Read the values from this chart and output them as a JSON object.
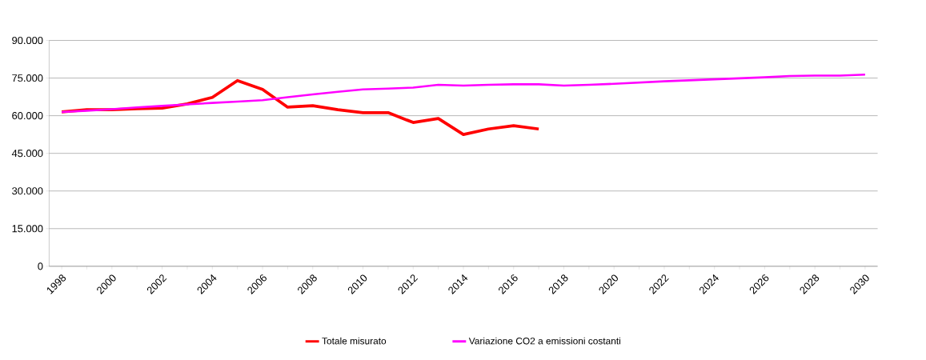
{
  "chart_data": {
    "type": "line",
    "x": [
      1998,
      1999,
      2000,
      2001,
      2002,
      2003,
      2004,
      2005,
      2006,
      2007,
      2008,
      2009,
      2010,
      2011,
      2012,
      2013,
      2014,
      2015,
      2016,
      2017,
      2018,
      2019,
      2020,
      2021,
      2022,
      2023,
      2024,
      2025,
      2026,
      2027,
      2028,
      2029,
      2030
    ],
    "series": [
      {
        "name": "Totale misurato",
        "color": "#ff0000",
        "x": [
          1998,
          1999,
          2000,
          2001,
          2002,
          2003,
          2004,
          2005,
          2006,
          2007,
          2008,
          2009,
          2010,
          2011,
          2012,
          2013,
          2014,
          2015,
          2016,
          2017
        ],
        "values": [
          61500,
          62400,
          62400,
          62800,
          63000,
          64700,
          67300,
          74000,
          70500,
          63400,
          64000,
          62400,
          61200,
          61200,
          57300,
          58900,
          52500,
          54700,
          56000,
          54700
        ]
      },
      {
        "name": "Variazione CO2 a emissioni costanti",
        "color": "#ff00ff",
        "values": [
          61500,
          62000,
          62600,
          63300,
          63900,
          64500,
          65100,
          65600,
          66200,
          67400,
          68500,
          69500,
          70500,
          70800,
          71200,
          72300,
          72000,
          72300,
          72500,
          72500,
          72000,
          72300,
          72700,
          73200,
          73700,
          74100,
          74500,
          74900,
          75300,
          75800,
          76000,
          76000,
          76400
        ]
      }
    ],
    "xlim": [
      1997.5,
      2030.5
    ],
    "xticks": [
      1998,
      2000,
      2002,
      2004,
      2006,
      2008,
      2010,
      2012,
      2014,
      2016,
      2018,
      2020,
      2022,
      2024,
      2026,
      2028,
      2030
    ],
    "ylim": [
      0,
      90000
    ],
    "yticks": [
      0,
      {
        "value": 15000,
        "label": "15.000"
      },
      {
        "value": 30000,
        "label": "30.000"
      },
      {
        "value": 45000,
        "label": "45.000"
      },
      {
        "value": 60000,
        "label": "60.000"
      },
      {
        "value": 75000,
        "label": "75.000"
      },
      {
        "value": 90000,
        "label": "90.000"
      }
    ],
    "grid": "y",
    "legend": "bottom",
    "marker": "none",
    "line_style": "solid"
  }
}
